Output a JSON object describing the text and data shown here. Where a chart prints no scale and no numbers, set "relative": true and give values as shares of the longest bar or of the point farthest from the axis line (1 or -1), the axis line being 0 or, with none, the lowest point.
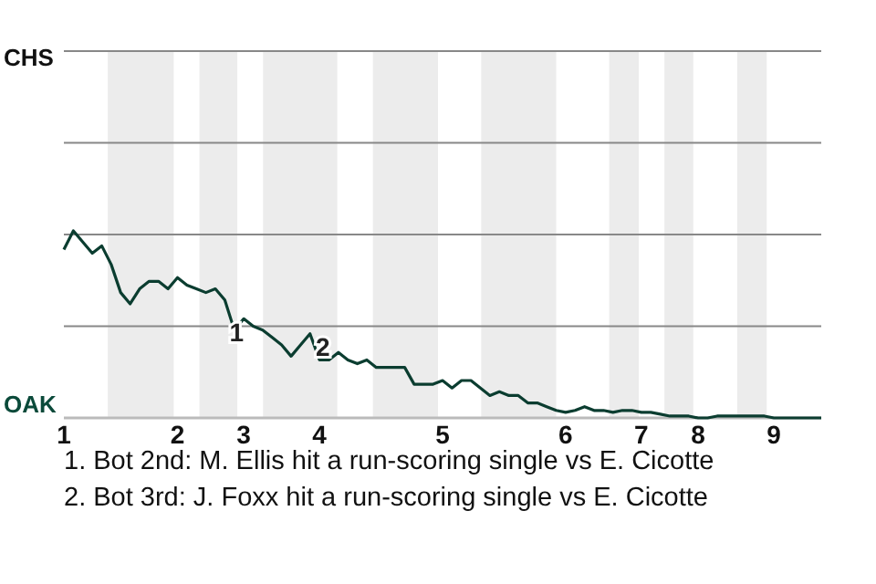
{
  "chart_data": {
    "type": "line",
    "relative": true,
    "categories": [
      "1",
      null,
      null,
      null,
      null,
      null,
      null,
      null,
      null,
      null,
      null,
      null,
      "2",
      null,
      null,
      null,
      null,
      null,
      null,
      "3",
      null,
      null,
      null,
      null,
      null,
      null,
      null,
      "4",
      null,
      null,
      null,
      null,
      null,
      null,
      null,
      null,
      null,
      null,
      null,
      null,
      "5",
      null,
      null,
      null,
      null,
      null,
      null,
      null,
      null,
      null,
      null,
      null,
      null,
      "6",
      null,
      null,
      null,
      null,
      null,
      null,
      null,
      "7",
      null,
      null,
      null,
      null,
      null,
      "8",
      null,
      null,
      null,
      null,
      null,
      null,
      null,
      "9",
      null,
      null,
      null,
      null,
      null
    ],
    "series": [
      {
        "color": "#0b3d30",
        "values": [
          0.9,
          1,
          0.94,
          0.88,
          0.92,
          0.82,
          0.67,
          0.61,
          0.69,
          0.73,
          0.73,
          0.69,
          0.75,
          0.71,
          0.69,
          0.67,
          0.69,
          0.63,
          0.47,
          0.53,
          0.49,
          0.47,
          0.43,
          0.39,
          0.33,
          0.39,
          0.45,
          0.31,
          0.31,
          0.35,
          0.31,
          0.29,
          0.31,
          0.27,
          0.27,
          0.27,
          0.27,
          0.18,
          0.18,
          0.18,
          0.2,
          0.16,
          0.2,
          0.2,
          0.16,
          0.12,
          0.14,
          0.12,
          0.12,
          0.08,
          0.08,
          0.06,
          0.04,
          0.03,
          0.04,
          0.06,
          0.04,
          0.04,
          0.03,
          0.04,
          0.04,
          0.03,
          0.03,
          0.02,
          0.01,
          0.01,
          0.01,
          0,
          0,
          0.01,
          0.01,
          0.01,
          0.01,
          0.01,
          0.01,
          0,
          0,
          0,
          0,
          0,
          0
        ]
      }
    ],
    "ref_lines": [
      {
        "axis": "y",
        "value": 0.4902,
        "color": "#888888"
      },
      {
        "axis": "y",
        "value": 0.9804,
        "color": "#888888"
      },
      {
        "axis": "y",
        "value": 1.4706,
        "color": "#888888"
      },
      {
        "axis": "y",
        "value": 1.9608,
        "color": "#888888"
      }
    ],
    "annotations": [
      "CHS",
      "OAK",
      "1",
      "2",
      "1. Bot 2nd: M. Ellis hit a run-scoring single vs E. Cicotte",
      "2. Bot 3rd: J. Foxx hit a run-scoring single vs E. Cicotte"
    ]
  }
}
